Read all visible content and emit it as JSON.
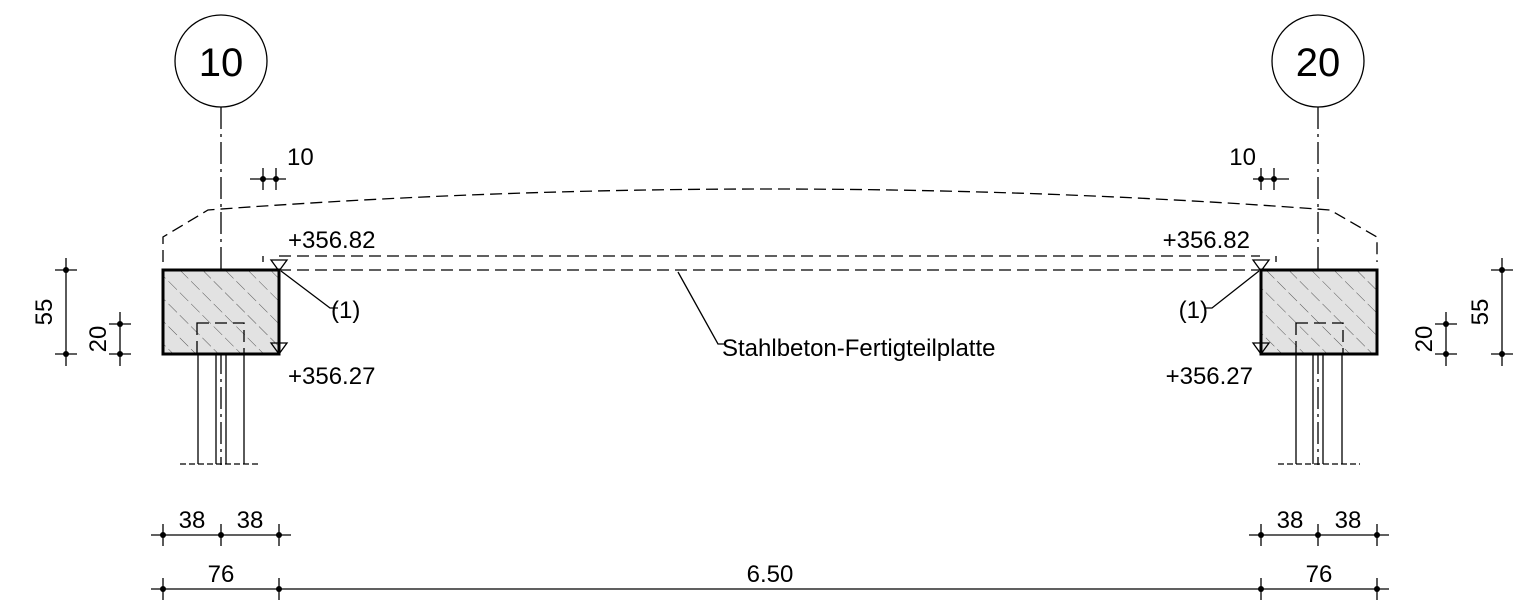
{
  "axes": {
    "left": "10",
    "right": "20"
  },
  "elevations": {
    "top_left": "+356.82",
    "top_right": "+356.82",
    "bottom_left": "+356.27",
    "bottom_right": "+356.27"
  },
  "callouts": {
    "left_ref": "(1)",
    "right_ref": "(1)",
    "slab": "Stahlbeton-Fertigteilplatte"
  },
  "dimensions": {
    "offset_left": "10",
    "offset_right": "10",
    "height_left": "55",
    "height_right": "55",
    "slab_left": "20",
    "slab_right": "20",
    "half_left_a": "38",
    "half_left_b": "38",
    "half_right_a": "38",
    "half_right_b": "38",
    "width_left": "76",
    "width_right": "76",
    "span": "6.50"
  }
}
